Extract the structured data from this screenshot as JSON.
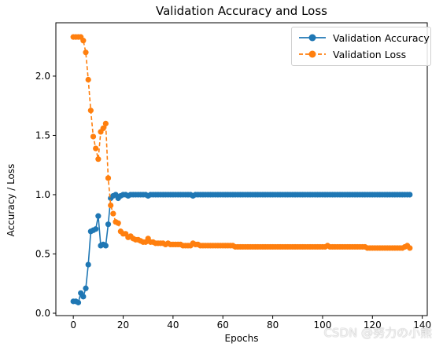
{
  "chart_data": {
    "type": "line",
    "title": "Validation Accuracy and Loss",
    "xlabel": "Epochs",
    "ylabel": "Accuracy / Loss",
    "xlim": [
      -7,
      142
    ],
    "ylim": [
      -0.02,
      2.45
    ],
    "xticks": [
      0,
      20,
      40,
      60,
      80,
      100,
      120,
      140
    ],
    "yticks": [
      0.0,
      0.5,
      1.0,
      1.5,
      2.0
    ],
    "ytick_labels": [
      "0.0",
      "0.5",
      "1.0",
      "1.5",
      "2.0"
    ],
    "grid": false,
    "legend_position": "top-right",
    "series": [
      {
        "name": "Validation Accuracy",
        "color": "#1f77b4",
        "linestyle": "solid",
        "marker": "circle",
        "x": [
          0,
          1,
          2,
          3,
          4,
          5,
          6,
          7,
          8,
          9,
          10,
          11,
          12,
          13,
          14,
          15,
          16,
          17,
          18,
          19,
          20,
          21,
          22,
          23,
          24,
          25,
          26,
          27,
          28,
          29,
          30,
          31,
          32,
          33,
          34,
          35,
          36,
          37,
          38,
          39,
          40,
          41,
          42,
          43,
          44,
          45,
          46,
          47,
          48,
          49,
          50,
          51,
          52,
          53,
          54,
          55,
          56,
          57,
          58,
          59,
          60,
          61,
          62,
          63,
          64,
          65,
          66,
          67,
          68,
          69,
          70,
          71,
          72,
          73,
          74,
          75,
          76,
          77,
          78,
          79,
          80,
          81,
          82,
          83,
          84,
          85,
          86,
          87,
          88,
          89,
          90,
          91,
          92,
          93,
          94,
          95,
          96,
          97,
          98,
          99,
          100,
          101,
          102,
          103,
          104,
          105,
          106,
          107,
          108,
          109,
          110,
          111,
          112,
          113,
          114,
          115,
          116,
          117,
          118,
          119,
          120,
          121,
          122,
          123,
          124,
          125,
          126,
          127,
          128,
          129,
          130,
          131,
          132,
          133,
          134,
          135
        ],
        "y": [
          0.1,
          0.1,
          0.09,
          0.17,
          0.14,
          0.21,
          0.41,
          0.69,
          0.7,
          0.71,
          0.82,
          0.57,
          0.58,
          0.57,
          0.75,
          0.97,
          0.99,
          1.0,
          0.97,
          0.99,
          1.0,
          1.0,
          0.99,
          1.0,
          1.0,
          1.0,
          1.0,
          1.0,
          1.0,
          1.0,
          0.99,
          1.0,
          1.0,
          1.0,
          1.0,
          1.0,
          1.0,
          1.0,
          1.0,
          1.0,
          1.0,
          1.0,
          1.0,
          1.0,
          1.0,
          1.0,
          1.0,
          1.0,
          0.99,
          1.0,
          1.0,
          1.0,
          1.0,
          1.0,
          1.0,
          1.0,
          1.0,
          1.0,
          1.0,
          1.0,
          1.0,
          1.0,
          1.0,
          1.0,
          1.0,
          1.0,
          1.0,
          1.0,
          1.0,
          1.0,
          1.0,
          1.0,
          1.0,
          1.0,
          1.0,
          1.0,
          1.0,
          1.0,
          1.0,
          1.0,
          1.0,
          1.0,
          1.0,
          1.0,
          1.0,
          1.0,
          1.0,
          1.0,
          1.0,
          1.0,
          1.0,
          1.0,
          1.0,
          1.0,
          1.0,
          1.0,
          1.0,
          1.0,
          1.0,
          1.0,
          1.0,
          1.0,
          1.0,
          1.0,
          1.0,
          1.0,
          1.0,
          1.0,
          1.0,
          1.0,
          1.0,
          1.0,
          1.0,
          1.0,
          1.0,
          1.0,
          1.0,
          1.0,
          1.0,
          1.0,
          1.0,
          1.0,
          1.0,
          1.0,
          1.0,
          1.0,
          1.0,
          1.0,
          1.0,
          1.0,
          1.0,
          1.0,
          1.0,
          1.0,
          1.0,
          1.0
        ]
      },
      {
        "name": "Validation Loss",
        "color": "#ff7f0e",
        "linestyle": "dashed",
        "marker": "circle",
        "x": [
          0,
          1,
          2,
          3,
          4,
          5,
          6,
          7,
          8,
          9,
          10,
          11,
          12,
          13,
          14,
          15,
          16,
          17,
          18,
          19,
          20,
          21,
          22,
          23,
          24,
          25,
          26,
          27,
          28,
          29,
          30,
          31,
          32,
          33,
          34,
          35,
          36,
          37,
          38,
          39,
          40,
          41,
          42,
          43,
          44,
          45,
          46,
          47,
          48,
          49,
          50,
          51,
          52,
          53,
          54,
          55,
          56,
          57,
          58,
          59,
          60,
          61,
          62,
          63,
          64,
          65,
          66,
          67,
          68,
          69,
          70,
          71,
          72,
          73,
          74,
          75,
          76,
          77,
          78,
          79,
          80,
          81,
          82,
          83,
          84,
          85,
          86,
          87,
          88,
          89,
          90,
          91,
          92,
          93,
          94,
          95,
          96,
          97,
          98,
          99,
          100,
          101,
          102,
          103,
          104,
          105,
          106,
          107,
          108,
          109,
          110,
          111,
          112,
          113,
          114,
          115,
          116,
          117,
          118,
          119,
          120,
          121,
          122,
          123,
          124,
          125,
          126,
          127,
          128,
          129,
          130,
          131,
          132,
          133,
          134,
          135
        ],
        "y": [
          2.33,
          2.33,
          2.33,
          2.33,
          2.3,
          2.2,
          1.97,
          1.71,
          1.49,
          1.39,
          1.3,
          1.53,
          1.56,
          1.6,
          1.14,
          0.91,
          0.84,
          0.77,
          0.76,
          0.69,
          0.67,
          0.67,
          0.64,
          0.65,
          0.63,
          0.62,
          0.62,
          0.61,
          0.6,
          0.6,
          0.63,
          0.6,
          0.6,
          0.59,
          0.59,
          0.59,
          0.59,
          0.58,
          0.59,
          0.58,
          0.58,
          0.58,
          0.58,
          0.58,
          0.57,
          0.57,
          0.57,
          0.57,
          0.59,
          0.58,
          0.58,
          0.57,
          0.57,
          0.57,
          0.57,
          0.57,
          0.57,
          0.57,
          0.57,
          0.57,
          0.57,
          0.57,
          0.57,
          0.57,
          0.57,
          0.56,
          0.56,
          0.56,
          0.56,
          0.56,
          0.56,
          0.56,
          0.56,
          0.56,
          0.56,
          0.56,
          0.56,
          0.56,
          0.56,
          0.56,
          0.56,
          0.56,
          0.56,
          0.56,
          0.56,
          0.56,
          0.56,
          0.56,
          0.56,
          0.56,
          0.56,
          0.56,
          0.56,
          0.56,
          0.56,
          0.56,
          0.56,
          0.56,
          0.56,
          0.56,
          0.56,
          0.56,
          0.57,
          0.56,
          0.56,
          0.56,
          0.56,
          0.56,
          0.56,
          0.56,
          0.56,
          0.56,
          0.56,
          0.56,
          0.56,
          0.56,
          0.56,
          0.56,
          0.55,
          0.55,
          0.55,
          0.55,
          0.55,
          0.55,
          0.55,
          0.55,
          0.55,
          0.55,
          0.55,
          0.55,
          0.55,
          0.55,
          0.55,
          0.56,
          0.57,
          0.55
        ]
      }
    ]
  },
  "watermark": "CSDN @努力の小熊"
}
